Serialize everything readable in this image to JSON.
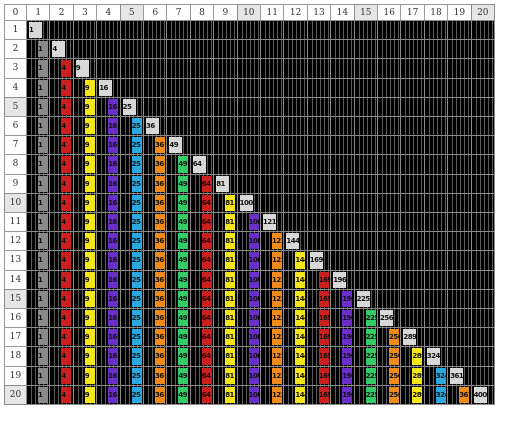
{
  "corner_label": "0",
  "column_headers": [
    "1",
    "2",
    "3",
    "4",
    "5",
    "6",
    "7",
    "8",
    "9",
    "10",
    "11",
    "12",
    "13",
    "14",
    "15",
    "16",
    "17",
    "18",
    "19",
    "20"
  ],
  "row_headers": [
    "1",
    "2",
    "3",
    "4",
    "5",
    "6",
    "7",
    "8",
    "9",
    "10",
    "11",
    "12",
    "13",
    "14",
    "15",
    "16",
    "17",
    "18",
    "19",
    "20"
  ],
  "highlighted_headers": [
    "5",
    "10",
    "15",
    "20"
  ],
  "square_values": [
    "1",
    "4",
    "9",
    "16",
    "25",
    "36",
    "49",
    "64",
    "81",
    "100",
    "121",
    "144",
    "169",
    "196",
    "225",
    "256",
    "289",
    "324",
    "361",
    "400"
  ],
  "colors": {
    "cell_background": "#000000",
    "grid_line": "#8a8a8a",
    "new_square_fill": "#d8d8d8",
    "square_colors": [
      "#8a8a8a",
      "#cc1f1f",
      "#f5e61a",
      "#6a2fc8",
      "#2aa9e0",
      "#f08a1a",
      "#33cc66",
      "#cc1f1f",
      "#f5e61a",
      "#6a2fc8",
      "#f08a1a",
      "#f5e61a",
      "#cc1f1f",
      "#6a2fc8",
      "#33cc66",
      "#f08a1a",
      "#f5e61a",
      "#2aa9e0",
      "#f08a1a",
      "#8a8a8a"
    ]
  }
}
